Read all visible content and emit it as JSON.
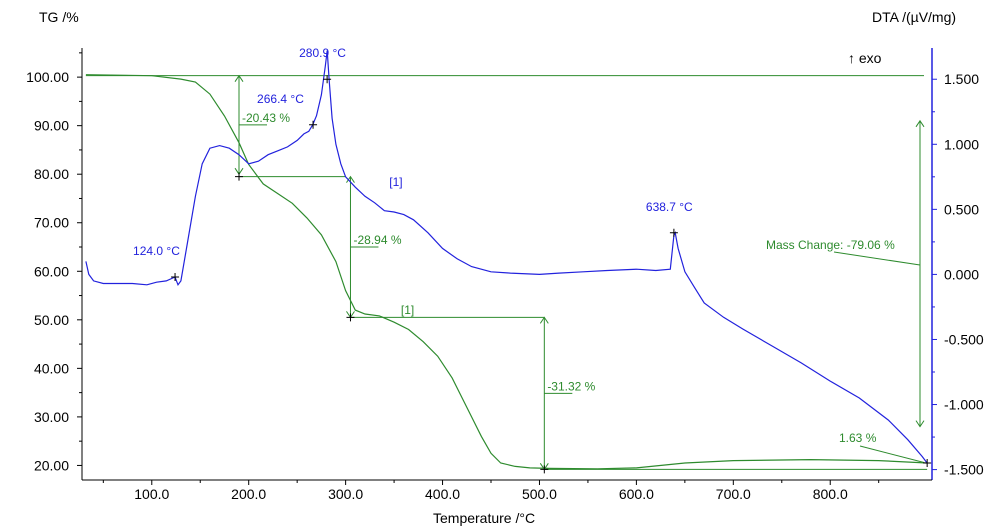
{
  "chart_data": {
    "type": "line",
    "title": "",
    "left_axis_label": "TG /%",
    "right_axis_label": "DTA /(µV/mg)",
    "xlabel": "Temperature /°C",
    "xlim": [
      28,
      905
    ],
    "ylim_left": [
      17,
      106
    ],
    "ylim_right": [
      -1.58,
      1.74
    ],
    "x_ticks": [
      "100.0",
      "200.0",
      "300.0",
      "400.0",
      "500.0",
      "600.0",
      "700.0",
      "800.0"
    ],
    "y_ticks_left": [
      "100.00",
      "90.00",
      "80.00",
      "70.00",
      "60.00",
      "50.00",
      "40.00",
      "30.00",
      "20.00"
    ],
    "y_ticks_right": [
      "1.500",
      "1.000",
      "0.500",
      "0.000",
      "-0.500",
      "-1.000",
      "-1.500"
    ],
    "exo_label": "↑ exo",
    "series": [
      {
        "name": "TG",
        "axis": "left",
        "color": "#2e8b2e",
        "points": [
          [
            32,
            100.5
          ],
          [
            100,
            100.3
          ],
          [
            130,
            99.6
          ],
          [
            145,
            99.0
          ],
          [
            160,
            96.5
          ],
          [
            175,
            92.0
          ],
          [
            190,
            86.5
          ],
          [
            200,
            82.0
          ],
          [
            215,
            78.0
          ],
          [
            230,
            76.0
          ],
          [
            245,
            74.0
          ],
          [
            260,
            71.0
          ],
          [
            275,
            67.5
          ],
          [
            290,
            62.0
          ],
          [
            300,
            56.0
          ],
          [
            310,
            52.0
          ],
          [
            320,
            51.2
          ],
          [
            335,
            50.8
          ],
          [
            350,
            49.5
          ],
          [
            365,
            48.0
          ],
          [
            380,
            45.5
          ],
          [
            395,
            42.5
          ],
          [
            410,
            38.0
          ],
          [
            420,
            34.0
          ],
          [
            430,
            30.0
          ],
          [
            440,
            26.0
          ],
          [
            450,
            22.5
          ],
          [
            460,
            20.5
          ],
          [
            475,
            19.8
          ],
          [
            490,
            19.5
          ],
          [
            510,
            19.4
          ],
          [
            560,
            19.3
          ],
          [
            600,
            19.5
          ],
          [
            650,
            20.5
          ],
          [
            700,
            21.0
          ],
          [
            780,
            21.2
          ],
          [
            850,
            21.0
          ],
          [
            900,
            20.5
          ]
        ]
      },
      {
        "name": "DTA",
        "axis": "right",
        "color": "#2222dd",
        "points": [
          [
            32,
            0.1
          ],
          [
            35,
            0.0
          ],
          [
            40,
            -0.05
          ],
          [
            50,
            -0.07
          ],
          [
            80,
            -0.07
          ],
          [
            95,
            -0.08
          ],
          [
            105,
            -0.06
          ],
          [
            115,
            -0.05
          ],
          [
            124,
            -0.02
          ],
          [
            127,
            -0.08
          ],
          [
            130,
            -0.05
          ],
          [
            137,
            0.25
          ],
          [
            145,
            0.6
          ],
          [
            152,
            0.85
          ],
          [
            160,
            0.97
          ],
          [
            170,
            0.99
          ],
          [
            180,
            0.97
          ],
          [
            190,
            0.92
          ],
          [
            200,
            0.85
          ],
          [
            210,
            0.87
          ],
          [
            220,
            0.92
          ],
          [
            230,
            0.95
          ],
          [
            240,
            0.98
          ],
          [
            250,
            1.03
          ],
          [
            257,
            1.08
          ],
          [
            262,
            1.1
          ],
          [
            266,
            1.15
          ],
          [
            270,
            1.22
          ],
          [
            275,
            1.38
          ],
          [
            279,
            1.6
          ],
          [
            281,
            1.72
          ],
          [
            283,
            1.5
          ],
          [
            286,
            1.2
          ],
          [
            290,
            1.0
          ],
          [
            295,
            0.85
          ],
          [
            300,
            0.75
          ],
          [
            310,
            0.67
          ],
          [
            320,
            0.6
          ],
          [
            330,
            0.55
          ],
          [
            340,
            0.49
          ],
          [
            350,
            0.48
          ],
          [
            360,
            0.46
          ],
          [
            370,
            0.42
          ],
          [
            385,
            0.32
          ],
          [
            400,
            0.2
          ],
          [
            415,
            0.12
          ],
          [
            430,
            0.06
          ],
          [
            450,
            0.02
          ],
          [
            470,
            0.01
          ],
          [
            500,
            0.0
          ],
          [
            520,
            0.01
          ],
          [
            545,
            0.02
          ],
          [
            570,
            0.03
          ],
          [
            600,
            0.04
          ],
          [
            620,
            0.03
          ],
          [
            635,
            0.04
          ],
          [
            638.7,
            0.3
          ],
          [
            640,
            0.32
          ],
          [
            643,
            0.2
          ],
          [
            650,
            0.02
          ],
          [
            660,
            -0.1
          ],
          [
            670,
            -0.22
          ],
          [
            690,
            -0.33
          ],
          [
            710,
            -0.42
          ],
          [
            740,
            -0.55
          ],
          [
            770,
            -0.68
          ],
          [
            800,
            -0.82
          ],
          [
            830,
            -0.95
          ],
          [
            860,
            -1.12
          ],
          [
            880,
            -1.27
          ],
          [
            895,
            -1.4
          ],
          [
            900,
            -1.45
          ]
        ]
      }
    ],
    "peak_annotations": [
      {
        "label": "124.0 °C",
        "x": 124.0,
        "y": -0.02
      },
      {
        "label": "266.4 °C",
        "x": 266.4,
        "y": 1.15
      },
      {
        "label": "280.9 °C",
        "x": 280.9,
        "y": 1.5
      },
      {
        "label": "638.7 °C",
        "x": 638.7,
        "y": 0.32
      }
    ],
    "mass_steps": [
      {
        "label": "-20.43 %",
        "x": 190,
        "from": 100.3,
        "to": 80.0
      },
      {
        "label": "-28.94 %",
        "x": 305,
        "from": 79.5,
        "to": 50.5
      },
      {
        "label": "-31.32 %",
        "x": 505,
        "from": 50.5,
        "to": 19.2
      }
    ],
    "mass_change_label": "Mass Change: -79.06 %",
    "residual_label": "1.63 %",
    "segment_labels": [
      "[1]",
      "[1]"
    ]
  }
}
